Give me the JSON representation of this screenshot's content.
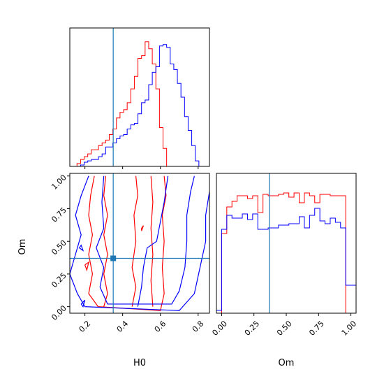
{
  "colors": {
    "red": "#ff0000",
    "blue": "#0000ff",
    "truth": "#1f77b4",
    "axes": "#000000",
    "background": "#ffffff"
  },
  "chart_data": {
    "type": "corner",
    "truth": {
      "H0": 0.35,
      "Om": 0.37
    },
    "panels": {
      "h0_hist": {
        "type": "histogram",
        "xlim": [
          0.12,
          0.86
        ],
        "ymax": 1.0,
        "bin_edges": [
          0.12,
          0.139,
          0.158,
          0.177,
          0.196,
          0.215,
          0.234,
          0.253,
          0.272,
          0.291,
          0.31,
          0.329,
          0.348,
          0.367,
          0.386,
          0.405,
          0.424,
          0.443,
          0.462,
          0.481,
          0.5,
          0.519,
          0.538,
          0.557,
          0.576,
          0.595,
          0.614,
          0.633,
          0.652,
          0.671,
          0.69,
          0.709,
          0.728,
          0.747,
          0.766,
          0.785,
          0.804,
          0.823,
          0.842
        ],
        "series": [
          {
            "color": "red",
            "values": [
              0,
              0,
              0.02,
              0.05,
              0.07,
              0.09,
              0.12,
              0.12,
              0.15,
              0.17,
              0.19,
              0.23,
              0.27,
              0.35,
              0.39,
              0.41,
              0.46,
              0.56,
              0.65,
              0.78,
              0.8,
              0.9,
              0.85,
              0.74,
              0.56,
              0.28,
              0.13,
              0,
              0,
              0,
              0,
              0,
              0,
              0,
              0,
              0,
              0,
              0
            ]
          },
          {
            "color": "blue",
            "values": [
              0,
              0,
              0,
              0.01,
              0.03,
              0.04,
              0.05,
              0.05,
              0.07,
              0.09,
              0.14,
              0.14,
              0.17,
              0.2,
              0.22,
              0.23,
              0.27,
              0.3,
              0.31,
              0.38,
              0.46,
              0.48,
              0.59,
              0.68,
              0.72,
              0.87,
              0.88,
              0.86,
              0.74,
              0.7,
              0.6,
              0.5,
              0.36,
              0.26,
              0.15,
              0.04,
              0,
              0
            ]
          }
        ]
      },
      "contour": {
        "type": "contour",
        "xlabel": "H0",
        "ylabel": "Om",
        "xlim": [
          0.12,
          0.86
        ],
        "ylim": [
          -0.05,
          1.02
        ],
        "xticks": [
          "0.2",
          "0.4",
          "0.6",
          "0.8"
        ],
        "yticks": [
          "0.00",
          "0.25",
          "0.50",
          "0.75",
          "1.00"
        ],
        "series": [
          {
            "color": "red",
            "contours": [
              [
                [
                  0.25,
                  1.0
                ],
                [
                  0.23,
                  0.85
                ],
                [
                  0.22,
                  0.7
                ],
                [
                  0.24,
                  0.55
                ],
                [
                  0.22,
                  0.4
                ],
                [
                  0.24,
                  0.25
                ],
                [
                  0.22,
                  0.1
                ],
                [
                  0.27,
                  0.0
                ],
                [
                  0.6,
                  -0.03
                ],
                [
                  0.62,
                  0.1
                ],
                [
                  0.61,
                  0.3
                ],
                [
                  0.62,
                  0.5
                ],
                [
                  0.61,
                  0.7
                ],
                [
                  0.63,
                  0.85
                ],
                [
                  0.62,
                  1.0
                ]
              ],
              [
                [
                  0.31,
                  1.0
                ],
                [
                  0.3,
                  0.85
                ],
                [
                  0.32,
                  0.7
                ],
                [
                  0.3,
                  0.55
                ],
                [
                  0.32,
                  0.4
                ],
                [
                  0.3,
                  0.25
                ],
                [
                  0.32,
                  0.1
                ],
                [
                  0.3,
                  0.0
                ]
              ],
              [
                [
                  0.45,
                  0.0
                ],
                [
                  0.47,
                  0.15
                ],
                [
                  0.45,
                  0.3
                ],
                [
                  0.47,
                  0.5
                ],
                [
                  0.46,
                  0.7
                ],
                [
                  0.48,
                  0.85
                ],
                [
                  0.47,
                  1.0
                ]
              ],
              [
                [
                  0.56,
                  0.0
                ],
                [
                  0.55,
                  0.2
                ],
                [
                  0.56,
                  0.4
                ],
                [
                  0.55,
                  0.6
                ],
                [
                  0.56,
                  0.8
                ],
                [
                  0.55,
                  1.0
                ]
              ],
              [
                [
                  0.2,
                  0.32
                ],
                [
                  0.22,
                  0.34
                ],
                [
                  0.21,
                  0.28
                ],
                [
                  0.2,
                  0.32
                ]
              ],
              [
                [
                  0.5,
                  0.6
                ],
                [
                  0.51,
                  0.62
                ],
                [
                  0.5,
                  0.58
                ],
                [
                  0.5,
                  0.6
                ]
              ]
            ]
          },
          {
            "color": "blue",
            "contours": [
              [
                [
                  0.22,
                  1.0
                ],
                [
                  0.18,
                  0.85
                ],
                [
                  0.15,
                  0.7
                ],
                [
                  0.18,
                  0.55
                ],
                [
                  0.15,
                  0.4
                ],
                [
                  0.12,
                  0.25
                ],
                [
                  0.16,
                  0.1
                ],
                [
                  0.2,
                  0.0
                ],
                [
                  0.7,
                  -0.03
                ],
                [
                  0.78,
                  0.1
                ],
                [
                  0.81,
                  0.3
                ],
                [
                  0.84,
                  0.5
                ],
                [
                  0.84,
                  0.7
                ],
                [
                  0.86,
                  0.88
                ]
              ],
              [
                [
                  0.3,
                  1.0
                ],
                [
                  0.29,
                  0.8
                ],
                [
                  0.3,
                  0.6
                ],
                [
                  0.26,
                  0.45
                ],
                [
                  0.3,
                  0.3
                ],
                [
                  0.28,
                  0.15
                ],
                [
                  0.32,
                  0.02
                ],
                [
                  0.66,
                  0.02
                ],
                [
                  0.7,
                  0.12
                ],
                [
                  0.73,
                  0.3
                ],
                [
                  0.74,
                  0.5
                ],
                [
                  0.74,
                  0.7
                ],
                [
                  0.76,
                  0.88
                ],
                [
                  0.78,
                  1.0
                ]
              ],
              [
                [
                  0.48,
                  0.0
                ],
                [
                  0.5,
                  0.15
                ],
                [
                  0.51,
                  0.3
                ],
                [
                  0.53,
                  0.45
                ],
                [
                  0.58,
                  0.5
                ],
                [
                  0.6,
                  0.65
                ],
                [
                  0.62,
                  0.8
                ],
                [
                  0.64,
                  1.0
                ]
              ],
              [
                [
                  0.17,
                  0.45
                ],
                [
                  0.18,
                  0.47
                ],
                [
                  0.19,
                  0.43
                ],
                [
                  0.17,
                  0.45
                ]
              ],
              [
                [
                  0.18,
                  0.02
                ],
                [
                  0.2,
                  0.05
                ],
                [
                  0.19,
                  0.0
                ],
                [
                  0.18,
                  0.02
                ]
              ]
            ]
          }
        ]
      },
      "om_hist": {
        "type": "histogram",
        "xlabel": "Om",
        "xlim": [
          -0.04,
          1.04
        ],
        "ymax": 1.0,
        "xticks": [
          "0.00",
          "0.25",
          "0.50",
          "0.75",
          "1.00"
        ],
        "bin_edges": [
          -0.04,
          0.0,
          0.04,
          0.08,
          0.12,
          0.16,
          0.2,
          0.24,
          0.28,
          0.32,
          0.36,
          0.4,
          0.44,
          0.48,
          0.52,
          0.56,
          0.6,
          0.64,
          0.68,
          0.72,
          0.76,
          0.8,
          0.84,
          0.88,
          0.92,
          0.96,
          1.0,
          1.04
        ],
        "series": [
          {
            "color": "red",
            "values": [
              0,
              0.57,
              0.76,
              0.8,
              0.84,
              0.84,
              0.82,
              0.84,
              0.72,
              0.85,
              0.84,
              0.84,
              0.85,
              0.86,
              0.83,
              0.86,
              0.79,
              0.86,
              0.84,
              0.79,
              0.85,
              0.85,
              0.84,
              0.84,
              0.84,
              0,
              0
            ]
          },
          {
            "color": "blue",
            "values": [
              0.02,
              0.6,
              0.7,
              0.68,
              0.68,
              0.71,
              0.67,
              0.71,
              0.6,
              0.6,
              0.61,
              0.61,
              0.63,
              0.63,
              0.64,
              0.64,
              0.69,
              0.61,
              0.7,
              0.75,
              0.66,
              0.64,
              0.68,
              0.65,
              0.61,
              0.2,
              0.2
            ]
          }
        ]
      }
    }
  }
}
